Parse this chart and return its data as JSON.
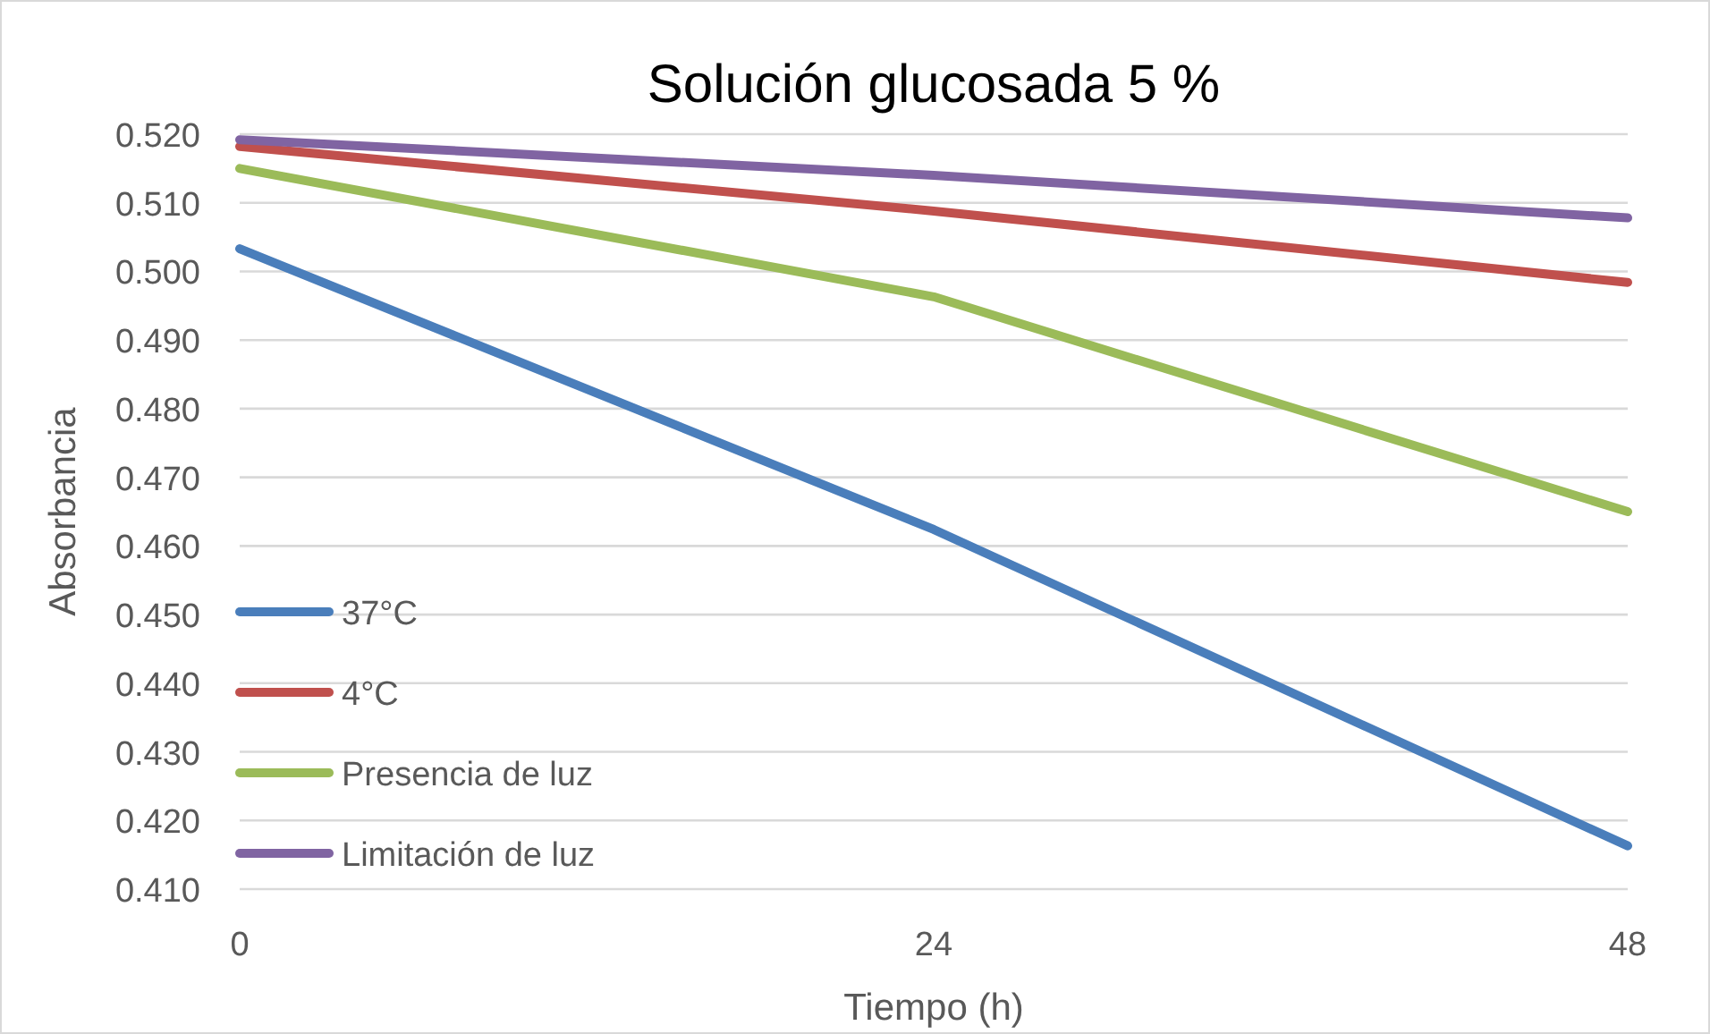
{
  "chart_data": {
    "type": "line",
    "title": "Solución glucosada 5 %",
    "xlabel": "Tiempo (h)",
    "ylabel": "Absorbancia",
    "x": [
      0,
      24,
      48
    ],
    "xlim": [
      0,
      48
    ],
    "xticks": [
      0,
      24,
      48
    ],
    "ylim": [
      0.41,
      0.52
    ],
    "yticks": [
      {
        "value": 0.41,
        "label": "0.410"
      },
      {
        "value": 0.42,
        "label": "0.420"
      },
      {
        "value": 0.43,
        "label": "0.430"
      },
      {
        "value": 0.44,
        "label": "0.440"
      },
      {
        "value": 0.45,
        "label": "0.450"
      },
      {
        "value": 0.46,
        "label": "0.460"
      },
      {
        "value": 0.47,
        "label": "0.470"
      },
      {
        "value": 0.48,
        "label": "0.480"
      },
      {
        "value": 0.49,
        "label": "0.490"
      },
      {
        "value": 0.5,
        "label": "0.500"
      },
      {
        "value": 0.51,
        "label": "0.510"
      },
      {
        "value": 0.52,
        "label": "0.520"
      }
    ],
    "grid": "y",
    "legend": "bottom left",
    "series": [
      {
        "name": "37°C",
        "color": "#4a7ebb",
        "values": [
          0.5033,
          0.4624,
          0.4163
        ]
      },
      {
        "name": "4°C",
        "color": "#c0504d",
        "values": [
          0.5182,
          0.5088,
          0.4984
        ]
      },
      {
        "name": "Presencia de luz",
        "color": "#9bbb59",
        "values": [
          0.515,
          0.4963,
          0.465
        ]
      },
      {
        "name": "Limitación de luz",
        "color": "#8064a2",
        "values": [
          0.5192,
          0.514,
          0.5078
        ]
      }
    ]
  }
}
